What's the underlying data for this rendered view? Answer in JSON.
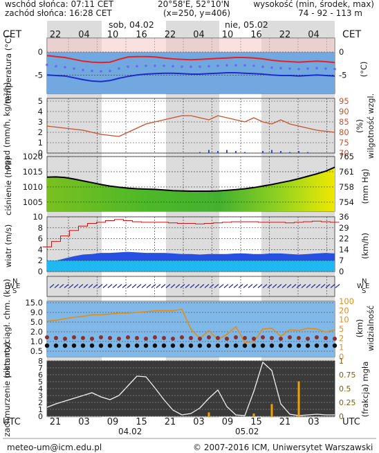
{
  "header": {
    "sunrise": "wschód słońca: 07:11 CET",
    "sunset": "zachód słońca: 16:28 CET",
    "coords": "20°58'E, 52°10'N",
    "grid": "(x=250,  y=406)",
    "height_label": "wysokość (min, środek, max)",
    "height_values": "74 - 92 - 113 m"
  },
  "timeline": {
    "top_tz": "CET",
    "bottom_tz": "UTC",
    "top_hours": [
      "22",
      "04",
      "10",
      "16",
      "22",
      "04",
      "10",
      "16",
      "22",
      "04"
    ],
    "bottom_hours": [
      "21",
      "03",
      "09",
      "15",
      "21",
      "03",
      "09",
      "15",
      "21",
      "03"
    ],
    "top_dates": [
      "sob, 04.02",
      "nie, 05.02"
    ],
    "bottom_dates": [
      "04.02",
      "05.02"
    ]
  },
  "colors": {
    "temp_line": "#e82020",
    "dew_line": "#1c2ccf",
    "dots": "#6a6aee",
    "humidity": "#c8502a",
    "pressure_line": "#000000",
    "wind_max": "#c81414",
    "wind_band": "#2850e0",
    "visibility": "#e88c10",
    "fog": "#f0a000"
  },
  "footer": {
    "left": "meteo-um@icm.edu.pl",
    "right": "© 2007-2016 ICM, Uniwersytet Warszawski"
  },
  "chart_data": [
    {
      "type": "line",
      "id": "temperature",
      "ylabel_left": "temperatura (°C)",
      "ylabel_right": "(°C)",
      "ticks": [
        "0",
        "-5"
      ],
      "ylim": [
        -9,
        3
      ],
      "series": [
        {
          "values": [
            -0.8,
            -1,
            -1.2,
            -1.6,
            -2,
            -2.2,
            -2.3,
            -2.2,
            -1.6,
            -1.1,
            -1,
            -1,
            -1.1,
            -1.3,
            -1.5,
            -1.6,
            -1.7,
            -1.6,
            -1.5,
            -1.4,
            -1.3,
            -1.2,
            -1.2,
            -1.3,
            -1.5,
            -1.8,
            -2,
            -2.1,
            -2.2,
            -2.1,
            -2,
            -2.1,
            -2.3
          ]
        },
        {
          "values": [
            -5,
            -5.1,
            -5.2,
            -5.6,
            -6,
            -6.3,
            -6.4,
            -6.2,
            -5.7,
            -5.3,
            -5,
            -4.8,
            -4.7,
            -4.6,
            -4.6,
            -4.7,
            -4.8,
            -4.8,
            -4.7,
            -4.6,
            -4.5,
            -4.5,
            -4.6,
            -4.7,
            -4.8,
            -5,
            -5.1,
            -5.1,
            -5.2,
            -5.1,
            -5,
            -5.1,
            -5.2
          ]
        },
        {
          "values": [
            -2.8,
            -3.1,
            -3.3,
            -3.6,
            -3.9,
            -4.1,
            -4.2,
            -4.1,
            -3.6,
            -3.2,
            -3.1,
            -3,
            -3,
            -3,
            -3.1,
            -3.2,
            -3.2,
            -3.2,
            -3.1,
            -3,
            -2.9,
            -2.9,
            -2.9,
            -3,
            -3.2,
            -3.4,
            -3.5,
            -3.6,
            -3.7,
            -3.6,
            -3.5,
            -3.6,
            -3.7
          ]
        }
      ]
    },
    {
      "type": "line",
      "id": "precipitation",
      "ylabel_left": "opad (mm/h, kg/m²/h)",
      "ylabel_right": "(%)",
      "ylabel_right2": "wilgotność wzgl.",
      "ticks_left": [
        "0",
        "1",
        "2",
        "3",
        "4",
        "5"
      ],
      "ticks_right": [
        "70",
        "75",
        "80",
        "85",
        "90",
        "95"
      ],
      "ylim_left": [
        0,
        5
      ],
      "ylim_right": [
        70,
        95
      ],
      "series": [
        {
          "values": [
            83,
            82.5,
            82,
            81.5,
            81,
            80,
            79,
            78.5,
            78,
            80,
            82,
            84,
            85,
            86,
            87,
            88,
            88,
            87,
            86,
            88,
            87,
            86,
            85,
            87,
            85,
            84,
            86,
            84,
            83,
            82,
            81,
            80.5,
            80
          ]
        },
        {
          "values": [
            0,
            0,
            0,
            0,
            0,
            0,
            0,
            0,
            0,
            0,
            0,
            0,
            0,
            0,
            0,
            0,
            0,
            0.1,
            0.3,
            0.2,
            0.3,
            0.2,
            0.1,
            0,
            0.2,
            0.3,
            0.2,
            0.1,
            0.2,
            0.1,
            0,
            0,
            0
          ]
        }
      ]
    },
    {
      "type": "area",
      "id": "pressure",
      "ylabel_left": "ciśnienie (hPa)",
      "ylabel_right": "(mm Hg)",
      "ticks_left": [
        "1005",
        "1010",
        "1015",
        "1020"
      ],
      "ticks_right": [
        "754",
        "758",
        "761",
        "765"
      ],
      "ylim": [
        1002,
        1020
      ],
      "series": [
        {
          "values": [
            1013.2,
            1013.3,
            1013.1,
            1012.6,
            1012,
            1011.4,
            1010.8,
            1010.3,
            1009.9,
            1009.6,
            1009.4,
            1009.3,
            1009.2,
            1009,
            1008.8,
            1008.7,
            1008.6,
            1008.6,
            1008.6,
            1008.7,
            1008.9,
            1009.1,
            1009.4,
            1009.8,
            1010.3,
            1010.8,
            1011.4,
            1012,
            1012.7,
            1013.5,
            1014.3,
            1015.2,
            1016.5
          ]
        }
      ]
    },
    {
      "type": "area",
      "id": "wind",
      "ylabel_left": "wiatr (m/s)",
      "ylabel_right": "(km/h)",
      "ticks_left": [
        "0",
        "2",
        "4",
        "6",
        "8",
        "10"
      ],
      "ticks_right": [
        "0",
        "7",
        "14",
        "22",
        "29",
        "36"
      ],
      "ylim": [
        0,
        10
      ],
      "series": [
        {
          "values": [
            4.5,
            5.5,
            6.5,
            7.5,
            8.3,
            8.8,
            9,
            9.3,
            9.5,
            9.3,
            9.1,
            9,
            9,
            9,
            8.9,
            8.8,
            8.8,
            8.7,
            8.8,
            8.9,
            9,
            9.1,
            9.1,
            9.1,
            9,
            9,
            9,
            8.9,
            9,
            9.1,
            9.2,
            9.1,
            9
          ]
        },
        {
          "values": [
            2,
            2,
            2.4,
            2.8,
            3.1,
            3.2,
            3.4,
            3.4,
            3.5,
            3.6,
            3.5,
            3.4,
            3.4,
            3.4,
            3.3,
            3.2,
            3.2,
            3.1,
            3.2,
            3.2,
            3.2,
            3.3,
            3.3,
            3.2,
            3.2,
            3.3,
            3.3,
            3.2,
            3.1,
            3.2,
            3.3,
            3.4,
            3.3
          ]
        }
      ]
    },
    {
      "type": "scatter",
      "id": "clouds",
      "ylabel_left": "pion. rozciągł. chm. (km)",
      "ylabel_right": "(km)",
      "ylabel_right2": "widzialność",
      "ticks_left": [
        "0.5",
        "1.0",
        "2.0",
        "5.0",
        "9.0",
        "15.0"
      ],
      "ticks_right": [
        "0",
        "1",
        "2",
        "5",
        "10",
        "20",
        "100"
      ],
      "series": [
        {
          "values": [
            4.5,
            4.6,
            4.8,
            5,
            5.1,
            5.3,
            5.3,
            5.4,
            5.5,
            5.5,
            5.6,
            5.7,
            5.8,
            5.8,
            5.8,
            6,
            3.5,
            2.3,
            3.3,
            2.2,
            2.8,
            3.8,
            1.8,
            1.9,
            3.5,
            3.6,
            2.6,
            3.4,
            3.3,
            3.6,
            3.5,
            3.1,
            3.4
          ]
        }
      ]
    },
    {
      "type": "area",
      "id": "cloud_cover",
      "ylabel_left": "zachmurzenie (oktanty)",
      "ylabel_right": "(frakcja) mgła",
      "ticks_left": [
        "0",
        "1",
        "2",
        "3",
        "4",
        "5",
        "6",
        "7",
        "8"
      ],
      "ticks_right": [
        "0",
        "0.25",
        "0.5",
        "0.75",
        "1"
      ],
      "ylim": [
        0,
        8
      ],
      "series": [
        {
          "values": [
            1.3,
            1.8,
            2.2,
            2.6,
            3,
            3.4,
            2.8,
            2.4,
            3,
            4.4,
            5.8,
            5.7,
            4.1,
            2.4,
            0.9,
            0.2,
            0.4,
            1.2,
            2.6,
            3.8,
            1.4,
            0.2,
            0.1,
            3.6,
            7.8,
            6.6,
            1.8,
            0.3,
            0.1,
            0.2,
            0.3,
            0.2,
            0.2
          ]
        },
        {
          "values": [
            0,
            0,
            0,
            0,
            0,
            0,
            0,
            0,
            0,
            0,
            0,
            0,
            0,
            0,
            0,
            0,
            0,
            0,
            0.07,
            0,
            0,
            0,
            0,
            0.05,
            0,
            0.22,
            0,
            0,
            0.63,
            0,
            0,
            0,
            0
          ]
        }
      ]
    }
  ]
}
